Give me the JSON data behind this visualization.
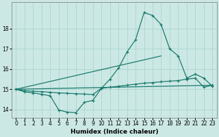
{
  "xlabel": "Humidex (Indice chaleur)",
  "bg_color": "#cce8e4",
  "grid_color": "#aad4d0",
  "line_color": "#1a7a6e",
  "xlim": [
    -0.5,
    23.5
  ],
  "ylim": [
    13.6,
    19.3
  ],
  "xticks": [
    0,
    1,
    2,
    3,
    4,
    5,
    6,
    7,
    8,
    9,
    10,
    11,
    12,
    13,
    14,
    15,
    16,
    17,
    18,
    19,
    20,
    21,
    22,
    23
  ],
  "yticks": [
    14,
    15,
    16,
    17,
    18
  ],
  "curve1_x": [
    0,
    1,
    2,
    3,
    4,
    5,
    6,
    7,
    8,
    9,
    10,
    11,
    12,
    13,
    14,
    15,
    16,
    17,
    18,
    19,
    20,
    21,
    22,
    23
  ],
  "curve1_y": [
    15.0,
    14.87,
    14.82,
    14.75,
    14.68,
    13.97,
    13.87,
    13.84,
    14.35,
    14.45,
    15.05,
    15.1,
    15.15,
    15.2,
    15.25,
    15.3,
    15.33,
    15.37,
    15.4,
    15.43,
    15.5,
    15.55,
    15.1,
    15.2
  ],
  "curve2_x": [
    0,
    1,
    2,
    3,
    4,
    5,
    6,
    7,
    8,
    9,
    10,
    11,
    12,
    13,
    14,
    15,
    16,
    17,
    18,
    19,
    20,
    21,
    22,
    23
  ],
  "curve2_y": [
    15.0,
    14.93,
    14.9,
    14.88,
    14.85,
    14.82,
    14.8,
    14.78,
    14.76,
    14.74,
    15.05,
    15.5,
    16.05,
    16.85,
    17.45,
    18.8,
    18.65,
    18.2,
    17.0,
    16.65,
    15.55,
    15.75,
    15.55,
    15.15
  ],
  "line3_x": [
    0,
    17
  ],
  "line3_y": [
    15.0,
    16.65
  ],
  "line4_x": [
    0,
    23
  ],
  "line4_y": [
    15.0,
    15.2
  ]
}
